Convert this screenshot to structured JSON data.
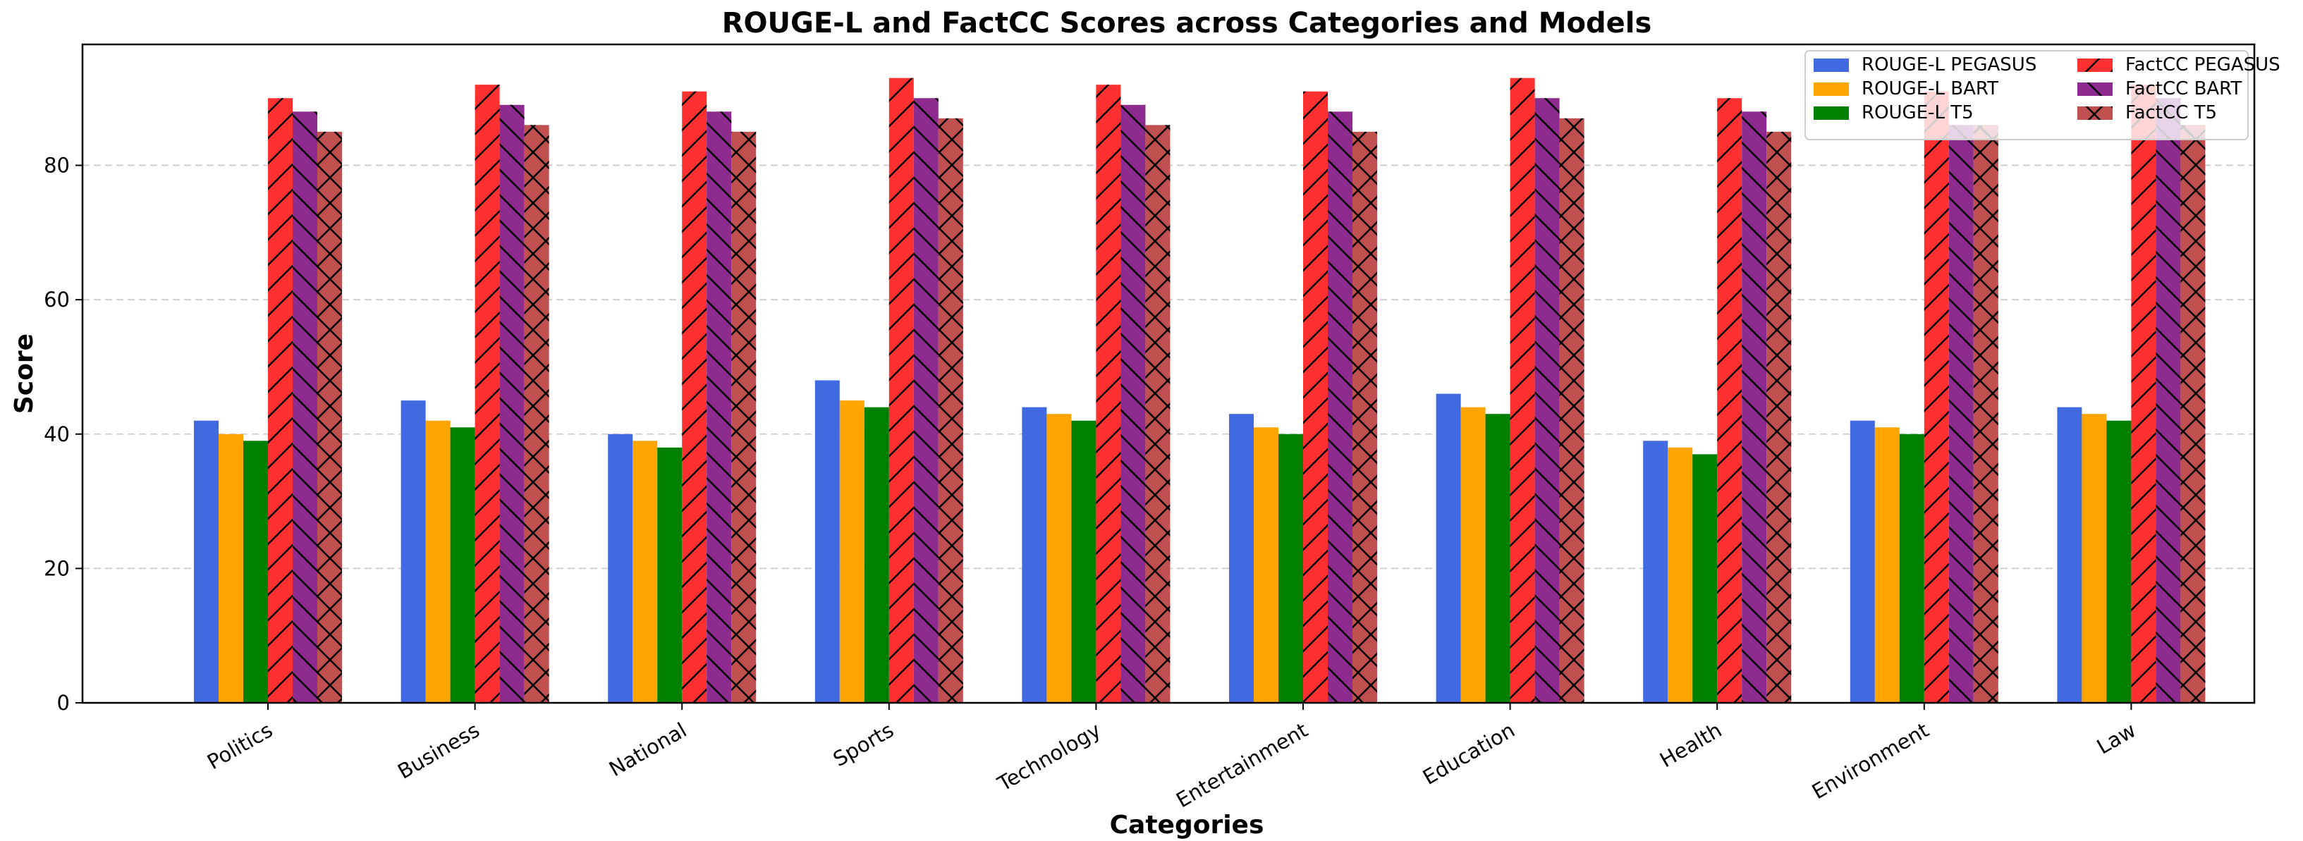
{
  "chart_data": {
    "type": "bar",
    "title": "ROUGE-L and FactCC Scores across Categories and Models",
    "xlabel": "Categories",
    "ylabel": "Score",
    "ylim": [
      0,
      98
    ],
    "yticks": [
      0,
      20,
      40,
      60,
      80
    ],
    "grid": "y, dashed",
    "legend_placement": "top-right",
    "categories": [
      "Politics",
      "Business",
      "National",
      "Sports",
      "Technology",
      "Entertainment",
      "Education",
      "Health",
      "Environment",
      "Law"
    ],
    "series": [
      {
        "name": "ROUGE-L PEGASUS",
        "color": "#4169e1",
        "hatch": "none",
        "values": [
          42,
          45,
          40,
          48,
          44,
          43,
          46,
          39,
          42,
          44
        ]
      },
      {
        "name": "ROUGE-L BART",
        "color": "#ffa500",
        "hatch": "none",
        "values": [
          40,
          42,
          39,
          45,
          43,
          41,
          44,
          38,
          41,
          43
        ]
      },
      {
        "name": "ROUGE-L T5",
        "color": "#008000",
        "hatch": "none",
        "values": [
          39,
          41,
          38,
          44,
          42,
          40,
          43,
          37,
          40,
          42
        ]
      },
      {
        "name": "FactCC PEGASUS",
        "color": "#ff3030",
        "hatch": "slash",
        "values": [
          90,
          92,
          91,
          93,
          92,
          91,
          93,
          90,
          91,
          92
        ]
      },
      {
        "name": "FactCC BART",
        "color": "#8e2b8e",
        "hatch": "backslash",
        "values": [
          88,
          89,
          88,
          90,
          89,
          88,
          90,
          88,
          86,
          90
        ]
      },
      {
        "name": "FactCC T5",
        "color": "#c05050",
        "hatch": "cross",
        "values": [
          85,
          86,
          85,
          87,
          86,
          85,
          87,
          85,
          86,
          86
        ]
      }
    ]
  }
}
